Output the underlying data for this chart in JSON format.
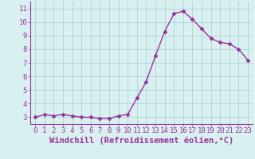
{
  "x": [
    0,
    1,
    2,
    3,
    4,
    5,
    6,
    7,
    8,
    9,
    10,
    11,
    12,
    13,
    14,
    15,
    16,
    17,
    18,
    19,
    20,
    21,
    22,
    23
  ],
  "y": [
    3.0,
    3.2,
    3.1,
    3.2,
    3.1,
    3.0,
    3.0,
    2.9,
    2.9,
    3.1,
    3.2,
    4.4,
    5.6,
    7.5,
    9.3,
    10.6,
    10.8,
    10.2,
    9.5,
    8.8,
    8.5,
    8.4,
    8.0,
    7.2
  ],
  "xlabel": "Windchill (Refroidissement éolien,°C)",
  "xlim": [
    -0.5,
    23.5
  ],
  "ylim": [
    2.5,
    11.5
  ],
  "yticks": [
    3,
    4,
    5,
    6,
    7,
    8,
    9,
    10,
    11
  ],
  "xticks": [
    0,
    1,
    2,
    3,
    4,
    5,
    6,
    7,
    8,
    9,
    10,
    11,
    12,
    13,
    14,
    15,
    16,
    17,
    18,
    19,
    20,
    21,
    22,
    23
  ],
  "line_color": "#993399",
  "marker": "D",
  "marker_size": 2.5,
  "bg_color": "#d8f0f0",
  "grid_color": "#aacccc",
  "tick_label_fontsize": 6.5,
  "xlabel_fontsize": 7.5
}
